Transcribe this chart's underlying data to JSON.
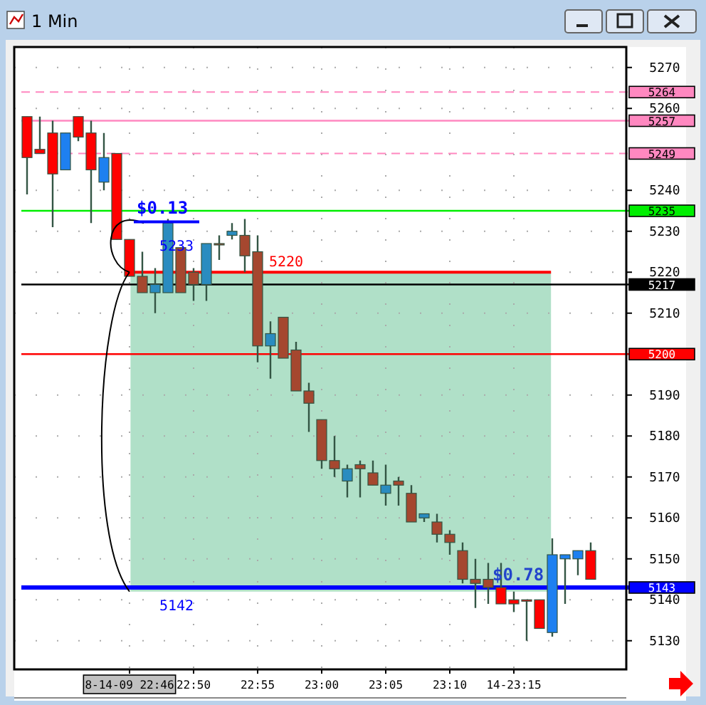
{
  "chart_data": {
    "type": "candlestick",
    "title": "1 Min",
    "categories": [
      null,
      null,
      null,
      null,
      null,
      null,
      null,
      null,
      "8-14-09 22:46",
      null,
      null,
      null,
      null,
      "22:50",
      null,
      null,
      null,
      null,
      "22:55",
      null,
      null,
      null,
      null,
      "23:00",
      null,
      null,
      null,
      null,
      "23:05",
      null,
      null,
      null,
      null,
      "23:10",
      null,
      null,
      null,
      null,
      "14-23:15",
      null,
      null,
      null,
      null,
      null,
      null
    ],
    "ohlc": [
      [
        5258,
        5258,
        5239,
        5248
      ],
      [
        5250,
        5258,
        5249,
        5249
      ],
      [
        5254,
        5257,
        5231,
        5244
      ],
      [
        5245,
        5254,
        5245,
        5254
      ],
      [
        5258,
        5258,
        5252,
        5253
      ],
      [
        5254,
        5257,
        5232,
        5245
      ],
      [
        5242,
        5254,
        5240,
        5248
      ],
      [
        5249,
        5249,
        5228,
        5228
      ],
      [
        5228,
        5228,
        5219,
        5219
      ],
      [
        5219,
        5225,
        5215,
        5215
      ],
      [
        5215,
        5221,
        5210,
        5217
      ],
      [
        5215,
        5233,
        5215,
        5232
      ],
      [
        5226,
        5226,
        5215,
        5215
      ],
      [
        5220,
        5221,
        5213,
        5217
      ],
      [
        5217,
        5227,
        5213,
        5227
      ],
      [
        5227,
        5229,
        5223,
        5227
      ],
      [
        5229,
        5232,
        5228,
        5230
      ],
      [
        5229,
        5233,
        5220,
        5224
      ],
      [
        5225,
        5229,
        5198,
        5202
      ],
      [
        5202,
        5208,
        5194,
        5205
      ],
      [
        5209,
        5209,
        5199,
        5199
      ],
      [
        5201,
        5203,
        5191,
        5191
      ],
      [
        5191,
        5193,
        5181,
        5188
      ],
      [
        5184,
        5184,
        5172,
        5174
      ],
      [
        5174,
        5180,
        5170,
        5172
      ],
      [
        5169,
        5173,
        5165,
        5172
      ],
      [
        5173,
        5174,
        5165,
        5172
      ],
      [
        5171,
        5174,
        5168,
        5168
      ],
      [
        5166,
        5173,
        5163,
        5168
      ],
      [
        5169,
        5170,
        5163,
        5168
      ],
      [
        5166,
        5168,
        5159,
        5159
      ],
      [
        5160,
        5161,
        5159,
        5161
      ],
      [
        5159,
        5161,
        5154,
        5156
      ],
      [
        5156,
        5157,
        5151,
        5154
      ],
      [
        5152,
        5154,
        5144,
        5145
      ],
      [
        5145,
        5150,
        5138,
        5144
      ],
      [
        5145,
        5149,
        5139,
        5143
      ],
      [
        5143,
        5149,
        5139,
        5139
      ],
      [
        5140,
        5142,
        5137,
        5139
      ],
      [
        5140,
        5140,
        5130,
        5140
      ],
      [
        5140,
        5140,
        5133,
        5133
      ],
      [
        5132,
        5155,
        5131,
        5151
      ],
      [
        5150,
        5151,
        5139,
        5151
      ],
      [
        5150,
        5152,
        5146,
        5152
      ],
      [
        5152,
        5154,
        5145,
        5145
      ]
    ],
    "colors": [
      "#ff0000",
      "#ff0000",
      "#ff0000",
      "#1e80f0",
      "#ff0000",
      "#ff0000",
      "#1e80f0",
      "#ff0000",
      "#ff0000",
      "#a5472f",
      "#2a8cc0",
      "#2a8cc0",
      "#a5472f",
      "#a5472f",
      "#2a8cc0",
      "#a5472f",
      "#2a8cc0",
      "#a5472f",
      "#a5472f",
      "#2a8cc0",
      "#a5472f",
      "#a5472f",
      "#a5472f",
      "#a5472f",
      "#a5472f",
      "#2a8cc0",
      "#a5472f",
      "#a5472f",
      "#2a8cc0",
      "#a5472f",
      "#a5472f",
      "#2a8cc0",
      "#a5472f",
      "#a5472f",
      "#a5472f",
      "#a5472f",
      "#a5472f",
      "#ff0000",
      "#ff0000",
      "#ff0000",
      "#ff0000",
      "#1e80f0",
      "#1e80f0",
      "#1e80f0",
      "#ff0000"
    ],
    "ylim": [
      5123,
      5275
    ],
    "yticks": [
      5130,
      5140,
      5150,
      5160,
      5170,
      5180,
      5190,
      5210,
      5220,
      5230,
      5240,
      5260,
      5270
    ],
    "grid": true,
    "ref_lines": [
      {
        "axis": "y",
        "value": 5264,
        "label": "5264",
        "color": "#ff88c0",
        "line_style": "dashed"
      },
      {
        "axis": "y",
        "value": 5257,
        "label": "5257",
        "color": "#ff88c0",
        "line_style": "solid"
      },
      {
        "axis": "y",
        "value": 5249,
        "label": "5249",
        "color": "#ff88c0",
        "line_style": "dashed"
      },
      {
        "axis": "y",
        "value": 5235,
        "label": "5235",
        "color": "#00ee00",
        "line_style": "solid"
      },
      {
        "axis": "y",
        "value": 5220,
        "color": "#ff0000",
        "line_style": "solid"
      },
      {
        "axis": "y",
        "value": 5217,
        "label": "5217",
        "color": "#000000",
        "line_style": "solid"
      },
      {
        "axis": "y",
        "value": 5200,
        "label": "5200",
        "color": "#ff0000",
        "line_style": "solid"
      },
      {
        "axis": "y",
        "value": 5143,
        "label": "5143",
        "color": "#0000ff",
        "line_style": "solid"
      }
    ],
    "bands": [
      {
        "axis": "y",
        "from": 5142,
        "to": 5220,
        "color": "#b0e0c8"
      }
    ],
    "annotations": [
      {
        "text": "$0.13",
        "y": 5233
      },
      "5233",
      {
        "text": "5220",
        "y": 5220
      },
      {
        "text": "$0.78",
        "y": 5143
      },
      {
        "text": "5142",
        "y": 5142
      }
    ]
  }
}
